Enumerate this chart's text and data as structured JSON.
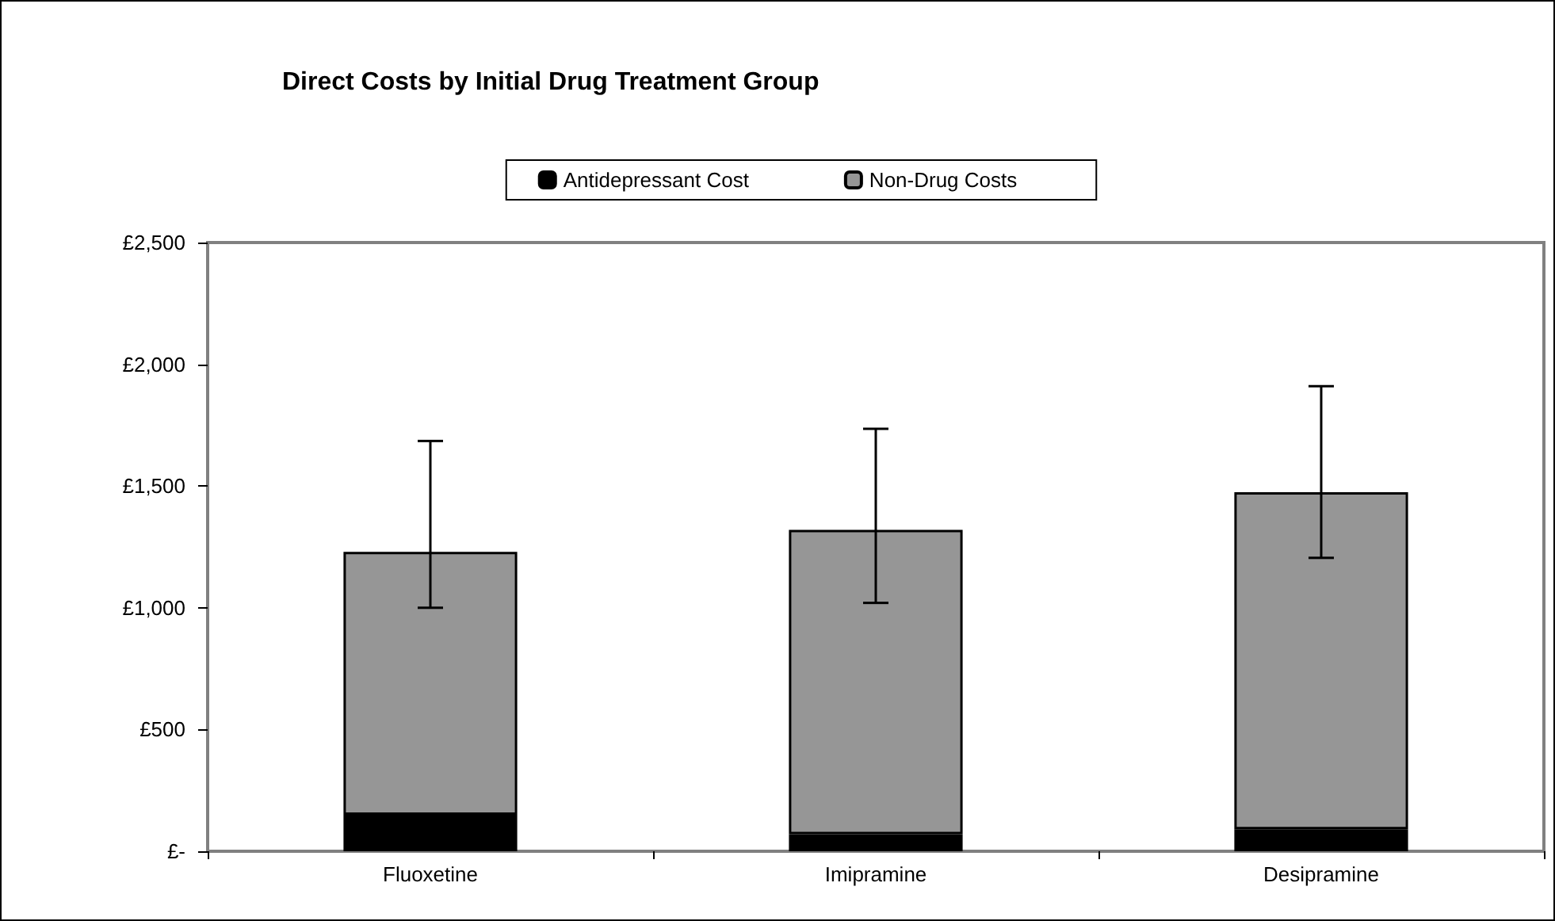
{
  "chart_data": {
    "type": "bar",
    "title": "Direct Costs by Initial Drug Treatment Group",
    "categories": [
      "Fluoxetine",
      "Imipramine",
      "Desipramine"
    ],
    "stacked": true,
    "series": [
      {
        "name": "Antidepressant Cost",
        "color": "#000000",
        "values": [
          150,
          70,
          90
        ]
      },
      {
        "name": "Non-Drug Costs",
        "color": "#969696",
        "values": [
          1080,
          1250,
          1385
        ],
        "errors": [
          [
            1000,
            1685
          ],
          [
            1020,
            1735
          ],
          [
            1205,
            1910
          ]
        ]
      }
    ],
    "ylim": [
      0,
      2500
    ],
    "yticks": [
      {
        "value": 0,
        "label": "£-"
      },
      {
        "value": 500,
        "label": "£500"
      },
      {
        "value": 1000,
        "label": "£1,000"
      },
      {
        "value": 1500,
        "label": "£1,500"
      },
      {
        "value": 2000,
        "label": "£2,000"
      },
      {
        "value": 2500,
        "label": "£2,500"
      }
    ],
    "grid": false,
    "legend": "top"
  }
}
